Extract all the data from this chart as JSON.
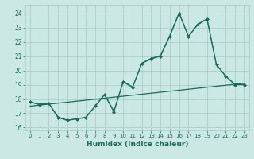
{
  "title": "",
  "xlabel": "Humidex (Indice chaleur)",
  "background_color": "#cce8e4",
  "line_color": "#1a6b5e",
  "grid_color": "#aacfcb",
  "xlim": [
    -0.5,
    23.5
  ],
  "ylim": [
    15.8,
    24.6
  ],
  "yticks": [
    16,
    17,
    18,
    19,
    20,
    21,
    22,
    23,
    24
  ],
  "xticks": [
    0,
    1,
    2,
    3,
    4,
    5,
    6,
    7,
    8,
    9,
    10,
    11,
    12,
    13,
    14,
    15,
    16,
    17,
    18,
    19,
    20,
    21,
    22,
    23
  ],
  "line1_x": [
    0,
    1,
    2,
    3,
    4,
    5,
    6,
    7,
    8,
    9,
    10,
    11,
    12,
    13,
    14,
    15,
    16,
    17,
    18,
    19,
    20,
    21,
    22,
    23
  ],
  "line1_y": [
    17.8,
    17.6,
    17.7,
    16.7,
    16.5,
    16.6,
    16.7,
    17.5,
    18.3,
    17.1,
    19.2,
    18.8,
    20.5,
    20.8,
    21.0,
    22.4,
    24.0,
    22.4,
    23.2,
    23.6,
    20.4,
    19.6,
    19.0,
    19.0
  ],
  "line2_y": [
    17.8,
    17.65,
    17.72,
    16.75,
    16.52,
    16.62,
    16.73,
    17.52,
    18.32,
    17.15,
    19.25,
    18.85,
    20.52,
    20.85,
    21.05,
    22.45,
    24.05,
    22.35,
    23.25,
    23.62,
    20.42,
    19.62,
    19.02,
    19.02
  ],
  "trend_x": [
    0,
    23
  ],
  "trend_y": [
    17.5,
    19.1
  ]
}
